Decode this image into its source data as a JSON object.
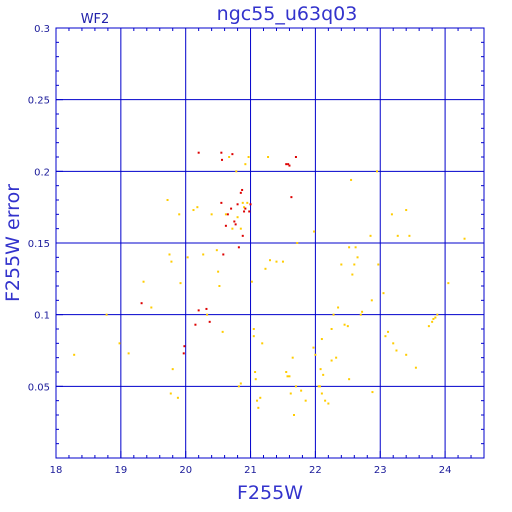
{
  "chart_data": {
    "type": "scatter",
    "title": "ngc55_u63q03",
    "panel_label": "WF2",
    "xlabel": "F255W",
    "ylabel": "F255W error",
    "xlim": [
      18.0,
      24.6
    ],
    "ylim": [
      0.0,
      0.3
    ],
    "x_ticks": [
      18,
      19,
      20,
      21,
      22,
      23,
      24
    ],
    "y_ticks": [
      0.05,
      0.1,
      0.15,
      0.2,
      0.25,
      0.3
    ],
    "grid": true,
    "colors": {
      "axes": "#0000cc",
      "grid": "#0000cc",
      "yellow_points": "#ffcc00",
      "red_points": "#dd0000"
    },
    "series": [
      {
        "color": "#ffcc00",
        "points": [
          [
            18.28,
            0.072
          ],
          [
            18.78,
            0.1
          ],
          [
            18.98,
            0.08
          ],
          [
            19.12,
            0.073
          ],
          [
            19.35,
            0.123
          ],
          [
            19.47,
            0.105
          ],
          [
            19.72,
            0.18
          ],
          [
            19.75,
            0.142
          ],
          [
            19.78,
            0.137
          ],
          [
            19.8,
            0.062
          ],
          [
            19.77,
            0.045
          ],
          [
            19.88,
            0.042
          ],
          [
            19.9,
            0.17
          ],
          [
            19.92,
            0.122
          ],
          [
            20.03,
            0.14
          ],
          [
            20.12,
            0.173
          ],
          [
            20.18,
            0.175
          ],
          [
            20.27,
            0.142
          ],
          [
            20.33,
            0.1
          ],
          [
            20.4,
            0.17
          ],
          [
            20.48,
            0.145
          ],
          [
            20.5,
            0.13
          ],
          [
            20.52,
            0.12
          ],
          [
            20.57,
            0.088
          ],
          [
            20.62,
            0.17
          ],
          [
            20.67,
            0.21
          ],
          [
            20.72,
            0.16
          ],
          [
            20.78,
            0.2
          ],
          [
            20.8,
            0.168
          ],
          [
            20.85,
            0.16
          ],
          [
            20.88,
            0.178
          ],
          [
            20.9,
            0.175
          ],
          [
            20.92,
            0.205
          ],
          [
            20.95,
            0.178
          ],
          [
            20.97,
            0.21
          ],
          [
            20.85,
            0.052
          ],
          [
            20.82,
            0.05
          ],
          [
            21.02,
            0.123
          ],
          [
            21.05,
            0.09
          ],
          [
            21.05,
            0.085
          ],
          [
            21.07,
            0.06
          ],
          [
            21.08,
            0.055
          ],
          [
            21.1,
            0.04
          ],
          [
            21.12,
            0.035
          ],
          [
            21.15,
            0.042
          ],
          [
            21.18,
            0.08
          ],
          [
            21.23,
            0.132
          ],
          [
            21.27,
            0.21
          ],
          [
            21.3,
            0.138
          ],
          [
            21.4,
            0.137
          ],
          [
            21.5,
            0.137
          ],
          [
            21.55,
            0.06
          ],
          [
            21.57,
            0.057
          ],
          [
            21.6,
            0.057
          ],
          [
            21.62,
            0.045
          ],
          [
            21.65,
            0.07
          ],
          [
            21.67,
            0.03
          ],
          [
            21.7,
            0.05
          ],
          [
            21.72,
            0.15
          ],
          [
            21.78,
            0.047
          ],
          [
            21.85,
            0.04
          ],
          [
            21.98,
            0.158
          ],
          [
            22.0,
            0.072
          ],
          [
            22.05,
            0.05
          ],
          [
            22.07,
            0.05
          ],
          [
            22.08,
            0.062
          ],
          [
            22.1,
            0.045
          ],
          [
            22.12,
            0.058
          ],
          [
            22.15,
            0.04
          ],
          [
            22.2,
            0.038
          ],
          [
            22.25,
            0.068
          ],
          [
            22.25,
            0.09
          ],
          [
            22.28,
            0.1
          ],
          [
            22.32,
            0.07
          ],
          [
            22.35,
            0.105
          ],
          [
            22.4,
            0.135
          ],
          [
            22.45,
            0.093
          ],
          [
            22.5,
            0.092
          ],
          [
            22.52,
            0.147
          ],
          [
            22.55,
            0.194
          ],
          [
            22.57,
            0.128
          ],
          [
            22.6,
            0.135
          ],
          [
            22.62,
            0.147
          ],
          [
            22.65,
            0.14
          ],
          [
            22.7,
            0.1
          ],
          [
            22.72,
            0.102
          ],
          [
            22.85,
            0.155
          ],
          [
            22.87,
            0.11
          ],
          [
            22.88,
            0.046
          ],
          [
            22.95,
            0.2
          ],
          [
            22.97,
            0.135
          ],
          [
            23.05,
            0.115
          ],
          [
            23.08,
            0.085
          ],
          [
            23.12,
            0.088
          ],
          [
            23.18,
            0.17
          ],
          [
            23.2,
            0.08
          ],
          [
            23.25,
            0.075
          ],
          [
            23.27,
            0.155
          ],
          [
            23.4,
            0.173
          ],
          [
            23.45,
            0.155
          ],
          [
            23.4,
            0.072
          ],
          [
            23.55,
            0.063
          ],
          [
            23.75,
            0.092
          ],
          [
            23.8,
            0.095
          ],
          [
            23.82,
            0.097
          ],
          [
            23.85,
            0.098
          ],
          [
            23.88,
            0.1
          ],
          [
            24.05,
            0.122
          ],
          [
            24.3,
            0.153
          ],
          [
            22.1,
            0.083
          ],
          [
            21.97,
            0.077
          ],
          [
            22.52,
            0.055
          ]
        ]
      },
      {
        "color": "#dd0000",
        "points": [
          [
            19.32,
            0.108
          ],
          [
            19.98,
            0.078
          ],
          [
            19.97,
            0.073
          ],
          [
            20.15,
            0.093
          ],
          [
            20.2,
            0.103
          ],
          [
            20.2,
            0.213
          ],
          [
            20.32,
            0.104
          ],
          [
            20.37,
            0.095
          ],
          [
            20.55,
            0.213
          ],
          [
            20.56,
            0.208
          ],
          [
            20.55,
            0.178
          ],
          [
            20.58,
            0.142
          ],
          [
            20.62,
            0.162
          ],
          [
            20.65,
            0.17
          ],
          [
            20.7,
            0.174
          ],
          [
            20.72,
            0.212
          ],
          [
            20.75,
            0.165
          ],
          [
            20.77,
            0.163
          ],
          [
            20.8,
            0.177
          ],
          [
            20.82,
            0.147
          ],
          [
            20.85,
            0.185
          ],
          [
            20.87,
            0.187
          ],
          [
            20.88,
            0.155
          ],
          [
            20.9,
            0.172
          ],
          [
            20.92,
            0.174
          ],
          [
            20.98,
            0.172
          ],
          [
            21.0,
            0.177
          ],
          [
            21.58,
            0.205
          ],
          [
            21.6,
            0.204
          ],
          [
            21.63,
            0.182
          ],
          [
            21.7,
            0.21
          ],
          [
            21.55,
            0.205
          ]
        ]
      }
    ]
  }
}
